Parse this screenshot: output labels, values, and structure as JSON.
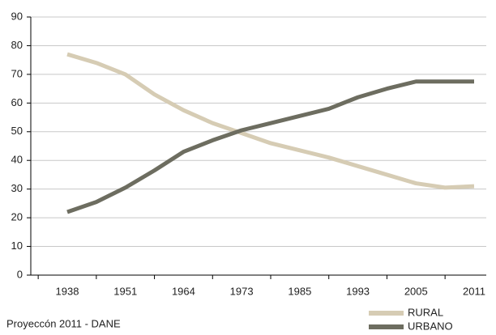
{
  "chart_data": {
    "type": "line",
    "categories": [
      "1938",
      null,
      "1951",
      null,
      "1964",
      null,
      "1973",
      null,
      "1985",
      null,
      "1993",
      null,
      "2005",
      null,
      "2011"
    ],
    "series": [
      {
        "name": "RURAL",
        "color": "#d6ccb4",
        "values": [
          77,
          74,
          70,
          63,
          57.5,
          53,
          49.5,
          46,
          43.5,
          41,
          38,
          35,
          32,
          30.5,
          31
        ]
      },
      {
        "name": "URBANO",
        "color": "#6d6d60",
        "values": [
          22,
          25.5,
          30.5,
          36.5,
          43,
          47,
          50.5,
          53,
          55.5,
          58,
          62,
          65,
          67.5,
          67.5,
          67.5
        ]
      }
    ],
    "ylim": [
      0,
      90
    ],
    "yticks": [
      0,
      10,
      20,
      30,
      40,
      50,
      60,
      70,
      80,
      90
    ],
    "grid": true,
    "source": "Proyeccón 2011 - DANE",
    "legend": "bottom-right"
  }
}
